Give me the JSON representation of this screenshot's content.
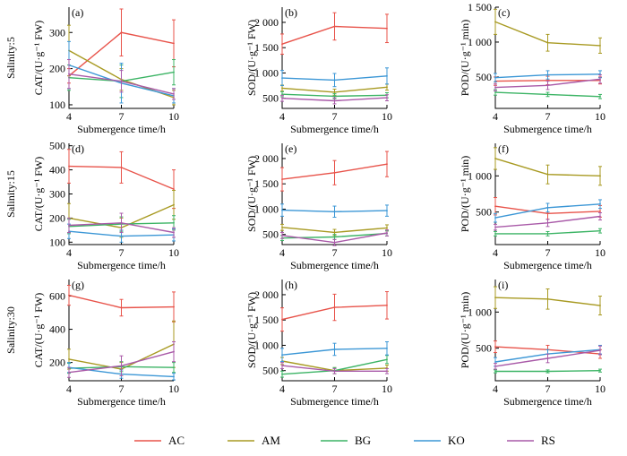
{
  "colors": {
    "AC": "#e8534a",
    "AM": "#a89a22",
    "BG": "#3cb465",
    "KO": "#3c97d6",
    "RS": "#a95aa8"
  },
  "legend": [
    "AC",
    "AM",
    "BG",
    "KO",
    "RS"
  ],
  "row_labels": [
    "Salinity:5",
    "Salinity:15",
    "Salinity:30"
  ],
  "chart_data": [
    {
      "panel": "(a)",
      "type": "line",
      "ylabel": "CAT/(U·g⁻¹ FW)",
      "xlabel": "Submergence time/h",
      "x": [
        4,
        7,
        10
      ],
      "ylim": [
        90,
        370
      ],
      "yticks": [
        100,
        200,
        300
      ],
      "yticklabels": [
        "100",
        "200",
        "300"
      ],
      "series": [
        {
          "name": "AC",
          "values": [
            180,
            300,
            270
          ],
          "errors": [
            20,
            65,
            65
          ]
        },
        {
          "name": "AM",
          "values": [
            250,
            170,
            120
          ],
          "errors": [
            70,
            30,
            20
          ]
        },
        {
          "name": "BG",
          "values": [
            175,
            165,
            190
          ],
          "errors": [
            35,
            45,
            35
          ]
        },
        {
          "name": "KO",
          "values": [
            210,
            160,
            125
          ],
          "errors": [
            65,
            55,
            20
          ]
        },
        {
          "name": "RS",
          "values": [
            185,
            165,
            130
          ],
          "errors": [
            40,
            30,
            15
          ]
        }
      ]
    },
    {
      "panel": "(b)",
      "type": "line",
      "ylabel": "SOD/(U·g⁻¹ FW)",
      "xlabel": "Submergence time/h",
      "x": [
        4,
        7,
        10
      ],
      "ylim": [
        300,
        2300
      ],
      "yticks": [
        500,
        1000,
        1500,
        2000
      ],
      "yticklabels": [
        "500",
        "1 000",
        "1 500",
        "2 000"
      ],
      "series": [
        {
          "name": "AC",
          "values": [
            1570,
            1920,
            1880
          ],
          "errors": [
            200,
            270,
            280
          ]
        },
        {
          "name": "AM",
          "values": [
            700,
            620,
            720
          ],
          "errors": [
            60,
            60,
            60
          ]
        },
        {
          "name": "BG",
          "values": [
            580,
            540,
            560
          ],
          "errors": [
            50,
            50,
            50
          ]
        },
        {
          "name": "KO",
          "values": [
            900,
            860,
            940
          ],
          "errors": [
            150,
            130,
            160
          ]
        },
        {
          "name": "RS",
          "values": [
            500,
            450,
            510
          ],
          "errors": [
            60,
            60,
            60
          ]
        }
      ]
    },
    {
      "panel": "(c)",
      "type": "line",
      "ylabel": "POD/(U·g⁻¹ min)",
      "xlabel": "Submergence time/h",
      "x": [
        4,
        7,
        10
      ],
      "ylim": [
        50,
        1500
      ],
      "yticks": [
        500,
        1000,
        1500
      ],
      "yticklabels": [
        "500",
        "1 000",
        "1 500"
      ],
      "series": [
        {
          "name": "AC",
          "values": [
            440,
            450,
            450
          ],
          "errors": [
            60,
            60,
            50
          ]
        },
        {
          "name": "AM",
          "values": [
            1290,
            990,
            950
          ],
          "errors": [
            180,
            120,
            110
          ]
        },
        {
          "name": "BG",
          "values": [
            280,
            250,
            220
          ],
          "errors": [
            40,
            30,
            30
          ]
        },
        {
          "name": "KO",
          "values": [
            490,
            530,
            540
          ],
          "errors": [
            60,
            60,
            50
          ]
        },
        {
          "name": "RS",
          "values": [
            350,
            380,
            470
          ],
          "errors": [
            50,
            60,
            60
          ]
        }
      ]
    },
    {
      "panel": "(d)",
      "type": "line",
      "ylabel": "CAT/(U·g⁻¹ FW)",
      "xlabel": "Submergence time/h",
      "x": [
        4,
        7,
        10
      ],
      "ylim": [
        90,
        510
      ],
      "yticks": [
        100,
        200,
        300,
        400,
        500
      ],
      "yticklabels": [
        "100",
        "200",
        "300",
        "400",
        "500"
      ],
      "series": [
        {
          "name": "AC",
          "values": [
            415,
            410,
            320
          ],
          "errors": [
            70,
            65,
            80
          ]
        },
        {
          "name": "AM",
          "values": [
            200,
            160,
            255
          ],
          "errors": [
            60,
            40,
            60
          ]
        },
        {
          "name": "BG",
          "values": [
            165,
            175,
            180
          ],
          "errors": [
            30,
            30,
            30
          ]
        },
        {
          "name": "KO",
          "values": [
            145,
            125,
            130
          ],
          "errors": [
            30,
            25,
            25
          ]
        },
        {
          "name": "RS",
          "values": [
            170,
            180,
            140
          ],
          "errors": [
            30,
            40,
            20
          ]
        }
      ]
    },
    {
      "panel": "(e)",
      "type": "line",
      "ylabel": "SOD/(U·g⁻¹ FW)",
      "xlabel": "Submergence time/h",
      "x": [
        4,
        7,
        10
      ],
      "ylim": [
        300,
        2300
      ],
      "yticks": [
        500,
        1000,
        1500,
        2000
      ],
      "yticklabels": [
        "500",
        "1 000",
        "1 500",
        "2 000"
      ],
      "series": [
        {
          "name": "AC",
          "values": [
            1590,
            1720,
            1890
          ],
          "errors": [
            230,
            240,
            250
          ]
        },
        {
          "name": "AM",
          "values": [
            640,
            540,
            630
          ],
          "errors": [
            60,
            60,
            60
          ]
        },
        {
          "name": "BG",
          "values": [
            430,
            450,
            520
          ],
          "errors": [
            50,
            50,
            50
          ]
        },
        {
          "name": "KO",
          "values": [
            980,
            950,
            970
          ],
          "errors": [
            120,
            110,
            110
          ]
        },
        {
          "name": "RS",
          "values": [
            480,
            340,
            530
          ],
          "errors": [
            60,
            60,
            60
          ]
        }
      ]
    },
    {
      "panel": "(f)",
      "type": "line",
      "ylabel": "POD/(U·g⁻¹ min)",
      "xlabel": "Submergence time/h",
      "x": [
        4,
        7,
        10
      ],
      "ylim": [
        50,
        1450
      ],
      "yticks": [
        500,
        1000
      ],
      "yticklabels": [
        "500",
        "1 000"
      ],
      "series": [
        {
          "name": "AC",
          "values": [
            580,
            480,
            510
          ],
          "errors": [
            120,
            80,
            80
          ]
        },
        {
          "name": "AM",
          "values": [
            1240,
            1020,
            1000
          ],
          "errors": [
            150,
            130,
            130
          ]
        },
        {
          "name": "BG",
          "values": [
            200,
            200,
            240
          ],
          "errors": [
            30,
            30,
            30
          ]
        },
        {
          "name": "KO",
          "values": [
            420,
            560,
            610
          ],
          "errors": [
            60,
            60,
            60
          ]
        },
        {
          "name": "RS",
          "values": [
            290,
            350,
            440
          ],
          "errors": [
            40,
            50,
            50
          ]
        }
      ]
    },
    {
      "panel": "(g)",
      "type": "line",
      "ylabel": "CAT/(U·g⁻¹ FW)",
      "xlabel": "Submergence time/h",
      "x": [
        4,
        7,
        10
      ],
      "ylim": [
        90,
        700
      ],
      "yticks": [
        200,
        400,
        600
      ],
      "yticklabels": [
        "200",
        "400",
        "600"
      ],
      "series": [
        {
          "name": "AC",
          "values": [
            605,
            530,
            535
          ],
          "errors": [
            60,
            50,
            90
          ]
        },
        {
          "name": "AM",
          "values": [
            220,
            160,
            310
          ],
          "errors": [
            60,
            40,
            140
          ]
        },
        {
          "name": "BG",
          "values": [
            165,
            175,
            170
          ],
          "errors": [
            30,
            30,
            30
          ]
        },
        {
          "name": "KO",
          "values": [
            170,
            130,
            115
          ],
          "errors": [
            30,
            25,
            20
          ]
        },
        {
          "name": "RS",
          "values": [
            140,
            180,
            265
          ],
          "errors": [
            30,
            60,
            60
          ]
        }
      ]
    },
    {
      "panel": "(h)",
      "type": "line",
      "ylabel": "SOD/(U·g⁻¹ FW)",
      "xlabel": "Submergence time/h",
      "x": [
        4,
        7,
        10
      ],
      "ylim": [
        300,
        2300
      ],
      "yticks": [
        500,
        1000,
        1500,
        2000
      ],
      "yticklabels": [
        "500",
        "1 000",
        "1 500",
        "2 000"
      ],
      "series": [
        {
          "name": "AC",
          "values": [
            1510,
            1750,
            1790
          ],
          "errors": [
            230,
            260,
            270
          ]
        },
        {
          "name": "AM",
          "values": [
            690,
            500,
            550
          ],
          "errors": [
            70,
            60,
            60
          ]
        },
        {
          "name": "BG",
          "values": [
            430,
            500,
            720
          ],
          "errors": [
            60,
            60,
            80
          ]
        },
        {
          "name": "KO",
          "values": [
            810,
            920,
            940
          ],
          "errors": [
            130,
            120,
            130
          ]
        },
        {
          "name": "RS",
          "values": [
            600,
            490,
            490
          ],
          "errors": [
            60,
            50,
            50
          ]
        }
      ]
    },
    {
      "panel": "(i)",
      "type": "line",
      "ylabel": "POD/(U·g⁻¹ min)",
      "xlabel": "Submergence time/h",
      "x": [
        4,
        7,
        10
      ],
      "ylim": [
        50,
        1450
      ],
      "yticks": [
        500,
        1000
      ],
      "yticklabels": [
        "500",
        "1 000"
      ],
      "series": [
        {
          "name": "AC",
          "values": [
            520,
            480,
            420
          ],
          "errors": [
            80,
            60,
            60
          ]
        },
        {
          "name": "AM",
          "values": [
            1200,
            1180,
            1090
          ],
          "errors": [
            150,
            140,
            130
          ]
        },
        {
          "name": "BG",
          "values": [
            180,
            180,
            190
          ],
          "errors": [
            20,
            20,
            20
          ]
        },
        {
          "name": "KO",
          "values": [
            310,
            420,
            480
          ],
          "errors": [
            60,
            60,
            60
          ]
        },
        {
          "name": "RS",
          "values": [
            250,
            360,
            470
          ],
          "errors": [
            40,
            60,
            60
          ]
        }
      ]
    }
  ]
}
